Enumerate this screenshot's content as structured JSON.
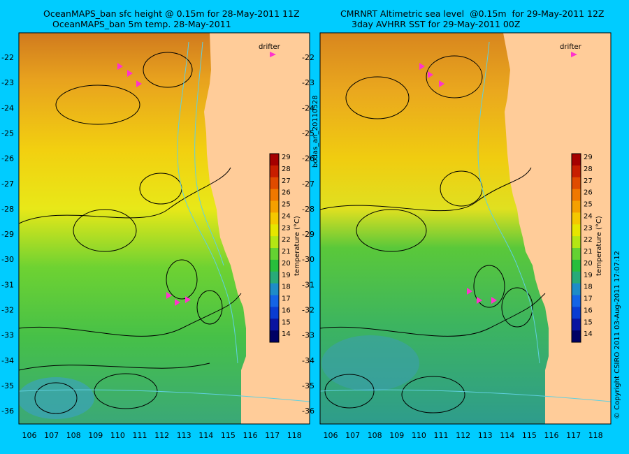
{
  "left_panel": {
    "title_line1": "OceanMAPS_ban sfc height @ 0.15m for 28-May-2011 11Z",
    "title_line2": "OceanMAPS_ban 5m temp. 28-May-2011",
    "drifter_label": "drifter"
  },
  "right_panel": {
    "title_line1": "CMRNRT Altimetric sea level  @0.15m  for 29-May-2011 12Z",
    "title_line2": "3day AVHRR SST for 29-May-2011 00Z",
    "drifter_label": "drifter"
  },
  "latitude_labels": [
    "-22",
    "-23",
    "-24",
    "-25",
    "-26",
    "-27",
    "-28",
    "-29",
    "-30",
    "-31",
    "-32",
    "-33",
    "-34",
    "-35",
    "-36"
  ],
  "longitude_labels": [
    "106",
    "107",
    "108",
    "109",
    "110",
    "111",
    "112",
    "113",
    "114",
    "115",
    "116",
    "117",
    "118"
  ],
  "colorbar": {
    "label": "temperature (°C)",
    "ticks": [
      "29",
      "28",
      "27",
      "26",
      "25",
      "24",
      "23",
      "22",
      "21",
      "20",
      "19",
      "18",
      "17",
      "16",
      "15",
      "14"
    ],
    "colors": [
      "#a50000",
      "#c81e00",
      "#e04b00",
      "#f07800",
      "#f5a000",
      "#f5c800",
      "#e6e600",
      "#b4e614",
      "#64d232",
      "#28be3c",
      "#28aa78",
      "#1e8cc8",
      "#1464e6",
      "#0a3cd2",
      "#0a14a0",
      "#000064"
    ]
  },
  "side_text_run": "bodas_an_20110528",
  "copyright": "© Copyright CSIRO 2011   03-Aug-2011 17:07:12",
  "colors": {
    "background": "#00ccff",
    "land": "#ffcc99",
    "drifter": "#ff33cc"
  }
}
